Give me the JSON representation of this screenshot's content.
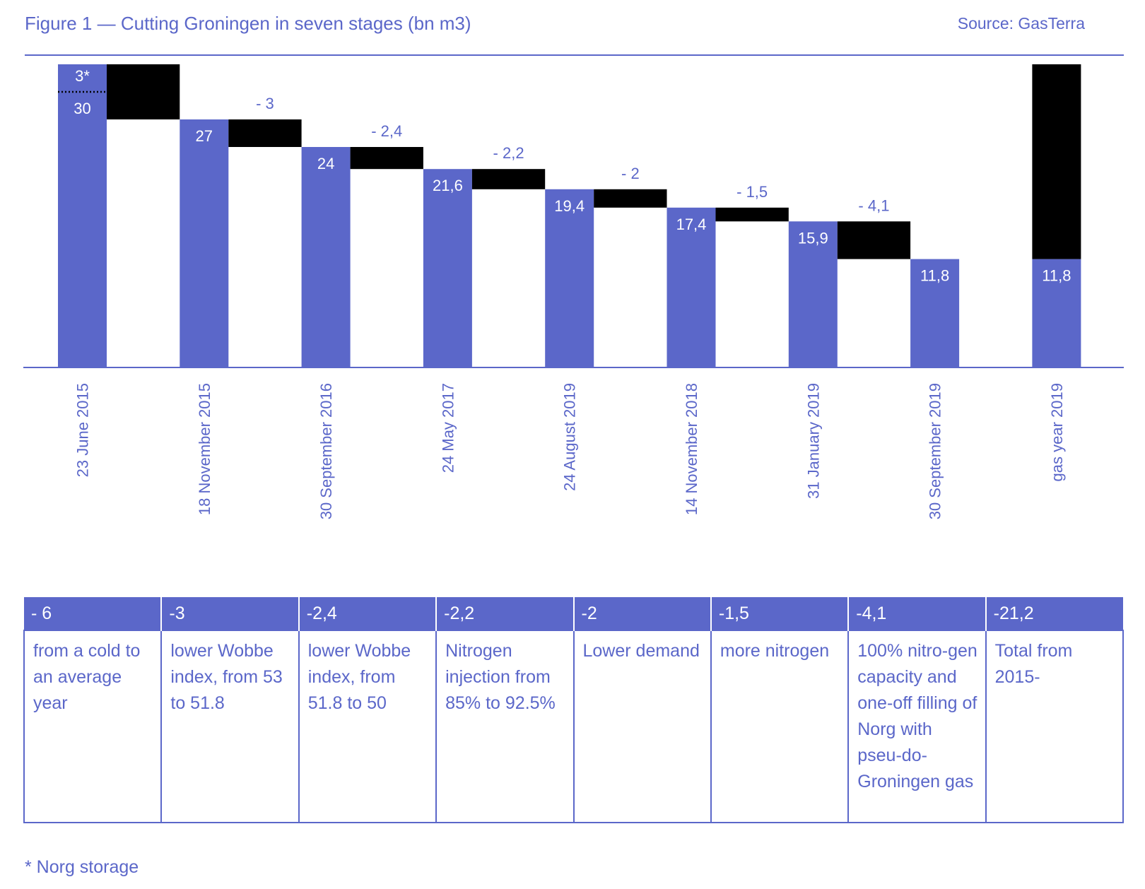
{
  "header": {
    "title": "Figure 1 — Cutting Groningen in seven stages (bn m3)",
    "source": "Source: GasTerra"
  },
  "colors": {
    "blue": "#5b67c9",
    "black": "#000000",
    "white": "#ffffff"
  },
  "chart_data": {
    "type": "bar",
    "subtype": "waterfall",
    "categories": [
      "23 June 2015",
      "18 November 2015",
      "30 September 2016",
      "24 May 2017",
      "24 August 2019",
      "14 November 2018",
      "31 January 2019",
      "30 September 2019",
      "gas year 2019"
    ],
    "values": [
      30,
      27,
      24,
      21.6,
      19.4,
      17.4,
      15.9,
      11.8,
      11.8
    ],
    "value_labels": [
      "30",
      "27",
      "24",
      "21,6",
      "19,4",
      "17,4",
      "15,9",
      "11,8",
      "11,8"
    ],
    "steps": [
      -6,
      -3,
      -2.4,
      -2.2,
      -2,
      -1.5,
      -4.1
    ],
    "step_labels": [
      "- 6",
      "- 3",
      "- 2,4",
      "- 2,2",
      "- 2",
      "- 1,5",
      "- 4,1"
    ],
    "total_change": -21.2,
    "total_change_label": "-21,2",
    "storage_addition": 3,
    "storage_addition_label": "3*",
    "ylim": [
      0,
      33
    ],
    "grid": false,
    "legend": "none"
  },
  "table": {
    "headers": [
      "- 6",
      "-3",
      "-2,4",
      "-2,2",
      "-2",
      "-1,5",
      "-4,1",
      "-21,2"
    ],
    "rows": [
      [
        "from a cold to an average year",
        "lower Wobbe index, from 53 to 51.8",
        "lower Wobbe index, from 51.8 to 50",
        "Nitrogen injection from 85% to 92.5%",
        "Lower demand",
        "more nitrogen",
        "100% nitro-gen capacity and one-off filling of Norg with pseu-do-Groningen gas",
        "Total from 2015-"
      ]
    ]
  },
  "footnote": "* Norg storage"
}
